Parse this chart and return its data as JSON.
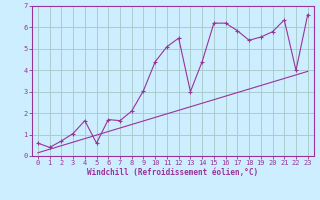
{
  "xlabel": "Windchill (Refroidissement éolien,°C)",
  "bg_color": "#cceeff",
  "line_color": "#993399",
  "grid_color": "#aacccc",
  "xlim": [
    -0.5,
    23.5
  ],
  "ylim": [
    0,
    7
  ],
  "xticks": [
    0,
    1,
    2,
    3,
    4,
    5,
    6,
    7,
    8,
    9,
    10,
    11,
    12,
    13,
    14,
    15,
    16,
    17,
    18,
    19,
    20,
    21,
    22,
    23
  ],
  "yticks": [
    0,
    1,
    2,
    3,
    4,
    5,
    6,
    7
  ],
  "series1_x": [
    0,
    1,
    2,
    3,
    4,
    5,
    6,
    7,
    8,
    9,
    10,
    11,
    12,
    13,
    14,
    15,
    16,
    17,
    18,
    19,
    20,
    21,
    22,
    23
  ],
  "series1_y": [
    0.6,
    0.4,
    0.7,
    1.05,
    1.65,
    0.6,
    1.7,
    1.65,
    2.1,
    3.05,
    4.4,
    5.1,
    5.5,
    3.0,
    4.4,
    6.2,
    6.2,
    5.85,
    5.4,
    5.55,
    5.8,
    6.35,
    4.0,
    6.6
  ],
  "series2_x": [
    0,
    23
  ],
  "series2_y": [
    0.15,
    3.95
  ],
  "marker": "+",
  "tick_fontsize": 5,
  "xlabel_fontsize": 5.5,
  "linewidth": 0.8,
  "markersize": 3.5
}
